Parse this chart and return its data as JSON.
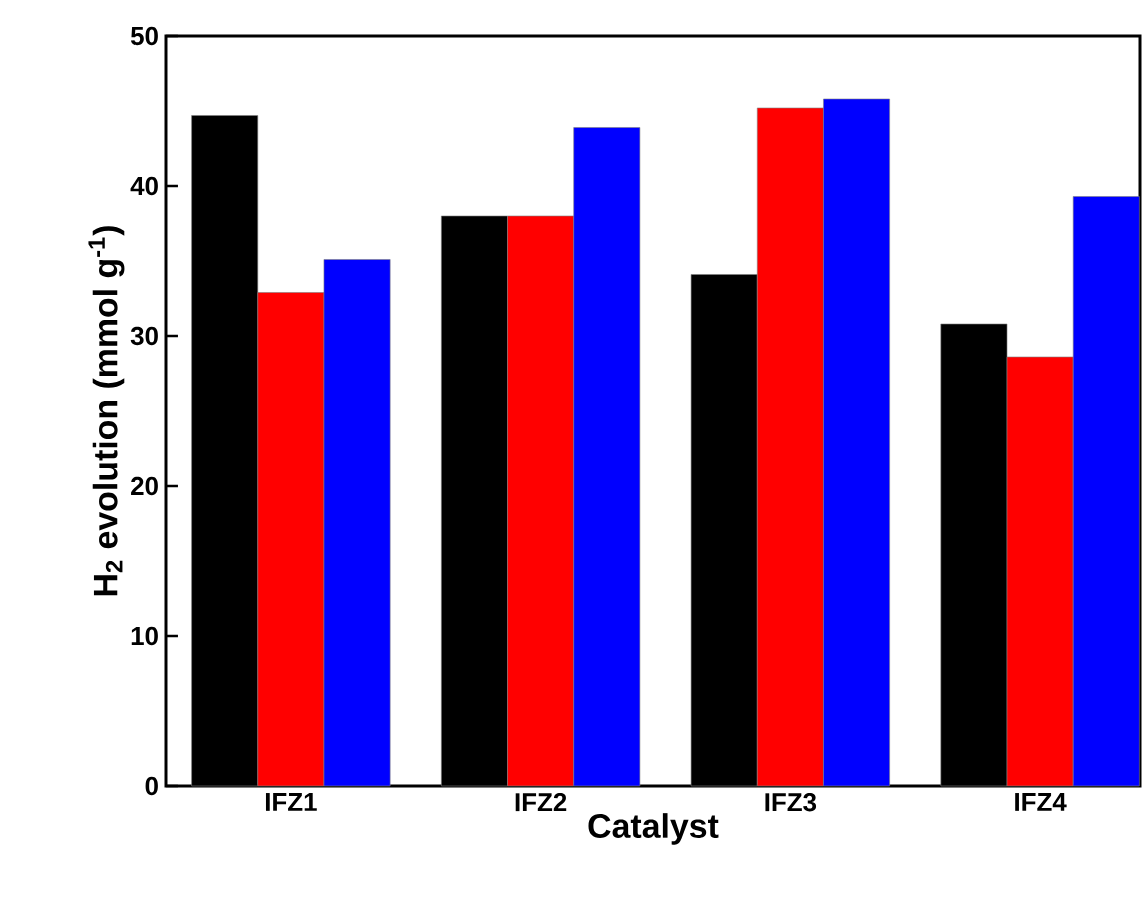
{
  "chart_data": {
    "type": "bar",
    "xlabel": "Catalyst",
    "ylabel": "H$_{2}$ evolution (mmol g$^{-1}$)",
    "categories": [
      "IFZ1",
      "IFZ2",
      "IFZ3",
      "IFZ4"
    ],
    "series": [
      {
        "color": "#000000",
        "values": [
          44.7,
          38.0,
          34.1,
          30.8
        ]
      },
      {
        "color": "#ff0000",
        "values": [
          32.9,
          38.0,
          45.2,
          28.6
        ]
      },
      {
        "color": "#0000ff",
        "values": [
          35.1,
          43.9,
          45.8,
          39.3
        ]
      }
    ],
    "ylim": [
      0,
      50
    ],
    "yticks": [
      0,
      10,
      20,
      30,
      40,
      50
    ],
    "grid": false
  }
}
